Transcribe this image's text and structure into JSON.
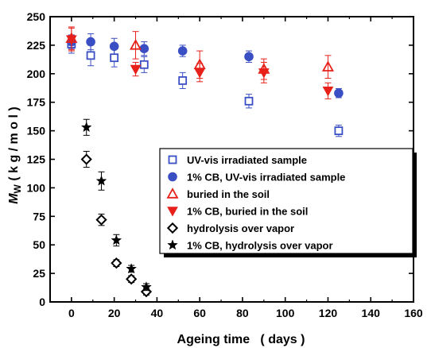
{
  "chart_data": {
    "type": "scatter",
    "xlabel": "Ageing time   ( days )",
    "ylabel_main": "M",
    "ylabel_sub": "W",
    "ylabel_unit": "( k g / m o l )",
    "xlim": [
      -10,
      160
    ],
    "ylim": [
      0,
      250
    ],
    "xticks": [
      0,
      20,
      40,
      60,
      80,
      100,
      120,
      140,
      160
    ],
    "yticks": [
      0,
      25,
      50,
      75,
      100,
      125,
      150,
      175,
      200,
      225,
      250
    ],
    "grid": false,
    "legend_position": "center-right",
    "series": [
      {
        "name": "UV-vis irradiated sample",
        "marker": "square-open",
        "color": "#3b4fc4",
        "x": [
          0,
          9,
          20,
          34,
          52,
          83,
          125
        ],
        "y": [
          226,
          216,
          214,
          208,
          194,
          176,
          150
        ],
        "err": [
          8,
          9,
          8,
          7,
          7,
          6,
          5
        ]
      },
      {
        "name": "1% CB, UV-vis irradiated sample",
        "marker": "circle-filled",
        "color": "#3b4fc4",
        "x": [
          0,
          9,
          20,
          34,
          52,
          83,
          125
        ],
        "y": [
          228,
          228,
          224,
          222,
          220,
          215,
          183
        ],
        "err": [
          6,
          7,
          7,
          6,
          5,
          5,
          4
        ]
      },
      {
        "name": "buried in the soil",
        "marker": "triangle-up-open",
        "color": "#e8201a",
        "x": [
          0,
          30,
          60,
          90,
          120
        ],
        "y": [
          231,
          225,
          208,
          204,
          206
        ],
        "err": [
          10,
          12,
          12,
          9,
          10
        ]
      },
      {
        "name": "1% CB, buried in the soil",
        "marker": "triangle-down-filled",
        "color": "#e8201a",
        "x": [
          0,
          30,
          60,
          90,
          120
        ],
        "y": [
          230,
          204,
          201,
          201,
          185
        ],
        "err": [
          10,
          6,
          8,
          9,
          7
        ]
      },
      {
        "name": "hydrolysis over vapor",
        "marker": "diamond-open",
        "color": "#000000",
        "x": [
          7,
          14,
          21,
          28,
          35
        ],
        "y": [
          125,
          72,
          34,
          20,
          9
        ],
        "err": [
          7,
          5,
          3,
          3,
          3
        ]
      },
      {
        "name": "1% CB, hydrolysis over vapor",
        "marker": "star-filled",
        "color": "#000000",
        "x": [
          7,
          14,
          21,
          28,
          35
        ],
        "y": [
          153,
          106,
          54,
          29,
          13
        ],
        "err": [
          7,
          8,
          5,
          3,
          3
        ]
      }
    ]
  }
}
